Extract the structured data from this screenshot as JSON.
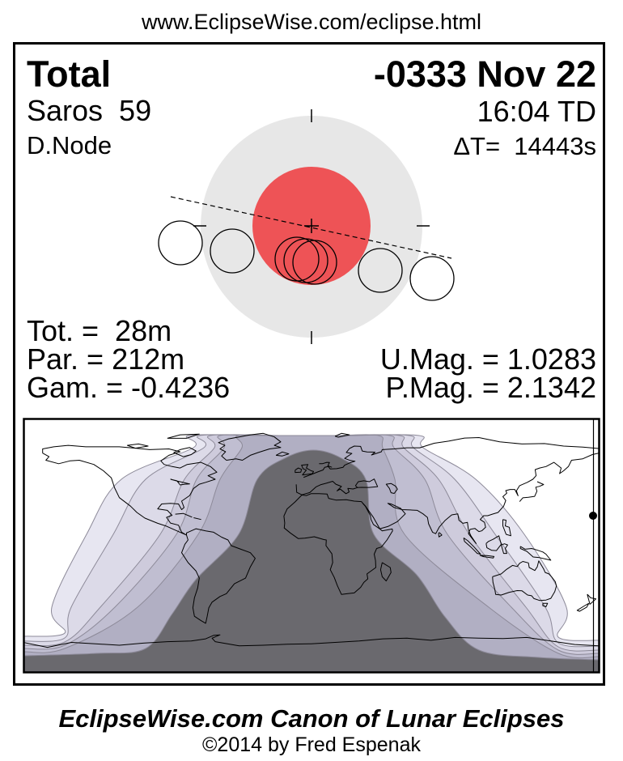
{
  "header": {
    "url": "www.EclipseWise.com/eclipse.html"
  },
  "card": {
    "eclipse_type": "Total",
    "date": "-0333 Nov 22",
    "saros": "Saros  59",
    "time": "16:04 TD",
    "node": "D.Node",
    "delta_t": "ΔT=  14443s",
    "stats_left": [
      "Tot. =  28m",
      "Par. = 212m",
      "Gam. = -0.4236"
    ],
    "stats_right": [
      "U.Mag. = 1.0283",
      "P.Mag. = 2.1342"
    ]
  },
  "footer": {
    "title": "EclipseWise.com Canon of Lunar Eclipses",
    "copyright": "©2014 by Fred Espenak"
  },
  "colors": {
    "umbra": "#ee5356",
    "penumbra": "#e7e7e7",
    "map_dark": "#6a696e",
    "map_bands": [
      "#e7e6f1",
      "#dcdae8",
      "#cecbdc",
      "#c0bed1",
      "#b1afc3"
    ],
    "band_line": "#8d8a99",
    "coastline": "#000000"
  }
}
